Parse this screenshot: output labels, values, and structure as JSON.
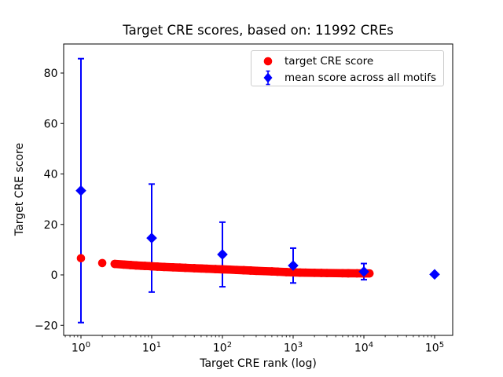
{
  "figure": {
    "title": "Target CRE scores, based on: 11992 CREs",
    "xlabel": "Target CRE rank (log)",
    "ylabel": "Target CRE score"
  },
  "legend": {
    "items": [
      {
        "label": "target CRE score",
        "marker": "circle",
        "color": "#ff0000"
      },
      {
        "label": "mean score across all motifs",
        "marker": "diamond-errorbar",
        "color": "#0000ff"
      }
    ]
  },
  "colors": {
    "target_series": "#ff0000",
    "mean_series": "#0000ff",
    "axis": "#000000",
    "legend_border": "#cccccc",
    "background": "#ffffff"
  },
  "chart_data": {
    "type": "scatter",
    "title": "Target CRE scores, based on: 11992 CREs",
    "xlabel": "Target CRE rank (log)",
    "ylabel": "Target CRE score",
    "x_scale": "log",
    "xlim": [
      0.57,
      180000
    ],
    "ylim": [
      -24,
      92
    ],
    "x_tick_exponents": [
      0,
      1,
      2,
      3,
      4,
      5
    ],
    "y_ticks": [
      -20,
      0,
      20,
      40,
      60,
      80
    ],
    "grid": false,
    "legend_position": "upper right",
    "total_cres": 11992,
    "series": [
      {
        "name": "target CRE score",
        "marker": "circle",
        "color": "#ff0000",
        "points": [
          [
            1,
            6.6
          ],
          [
            2,
            4.7
          ],
          [
            3,
            4.35
          ],
          [
            4,
            4.1
          ],
          [
            5,
            3.9
          ],
          [
            6,
            3.75
          ],
          [
            7,
            3.65
          ],
          [
            8,
            3.55
          ],
          [
            9,
            3.5
          ],
          [
            10,
            3.4
          ],
          [
            12,
            3.3
          ],
          [
            15,
            3.15
          ],
          [
            20,
            3.0
          ],
          [
            25,
            2.9
          ],
          [
            30,
            2.8
          ],
          [
            40,
            2.65
          ],
          [
            50,
            2.55
          ],
          [
            60,
            2.45
          ],
          [
            80,
            2.3
          ],
          [
            100,
            2.2
          ],
          [
            125,
            2.1
          ],
          [
            160,
            1.95
          ],
          [
            200,
            1.85
          ],
          [
            250,
            1.72
          ],
          [
            300,
            1.62
          ],
          [
            400,
            1.48
          ],
          [
            500,
            1.38
          ],
          [
            600,
            1.28
          ],
          [
            800,
            1.12
          ],
          [
            1000,
            1.0
          ],
          [
            1250,
            0.92
          ],
          [
            1500,
            0.88
          ],
          [
            2000,
            0.82
          ],
          [
            2500,
            0.78
          ],
          [
            3000,
            0.74
          ],
          [
            4000,
            0.7
          ],
          [
            5000,
            0.66
          ],
          [
            6000,
            0.64
          ],
          [
            8000,
            0.62
          ],
          [
            10000,
            0.6
          ],
          [
            11992,
            0.58
          ]
        ]
      },
      {
        "name": "mean score across all motifs",
        "marker": "diamond",
        "color": "#0000ff",
        "error": "std",
        "points": [
          [
            1,
            33.4,
            52.3
          ],
          [
            10,
            14.6,
            21.4
          ],
          [
            100,
            8.1,
            12.8
          ],
          [
            1000,
            3.7,
            6.9
          ],
          [
            10000,
            1.3,
            3.2
          ],
          [
            100000,
            0.2,
            0.3
          ]
        ]
      }
    ]
  }
}
